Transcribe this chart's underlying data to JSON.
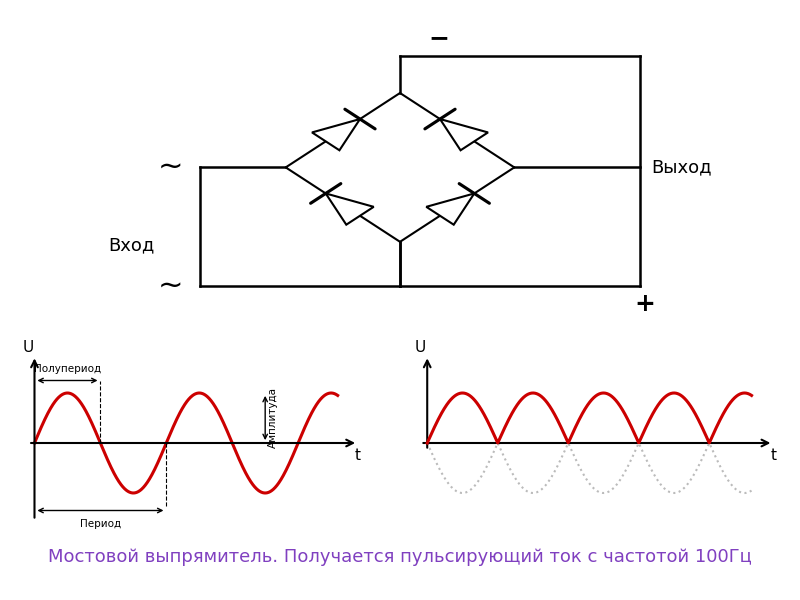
{
  "title": "Мостовой выпрямитель. Получается пульсирующий ток с частотой 100Гц",
  "title_color": "#8040C0",
  "title_fontsize": 13,
  "bg_color": "#FFFFFF",
  "wave_color": "#CC0000",
  "axis_color": "#000000",
  "label_color": "#000000",
  "annotation_color": "#000000",
  "dot_color": "#BBBBBB",
  "label_U": "U",
  "label_t": "t",
  "label_halfperiod": "Полупериод",
  "label_period": "Период",
  "label_amplitude": "Амплитуда",
  "label_vkhod": "Вход",
  "label_vykhod": "Выход",
  "label_minus": "−",
  "label_plus": "+"
}
